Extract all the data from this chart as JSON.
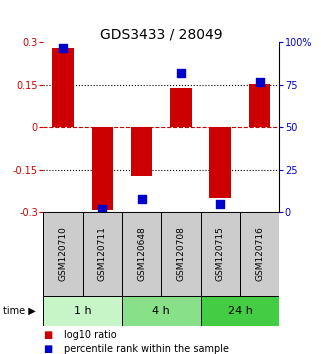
{
  "title": "GDS3433 / 28049",
  "samples": [
    "GSM120710",
    "GSM120711",
    "GSM120648",
    "GSM120708",
    "GSM120715",
    "GSM120716"
  ],
  "log10_ratio": [
    0.28,
    -0.29,
    -0.17,
    0.14,
    -0.25,
    0.155
  ],
  "percentile_rank": [
    97,
    2,
    8,
    82,
    5,
    77
  ],
  "time_groups": [
    {
      "label": "1 h",
      "start": 0,
      "end": 2,
      "color": "#c8f5c8"
    },
    {
      "label": "4 h",
      "start": 2,
      "end": 4,
      "color": "#88e088"
    },
    {
      "label": "24 h",
      "start": 4,
      "end": 6,
      "color": "#44cc44"
    }
  ],
  "ylim_left": [
    -0.3,
    0.3
  ],
  "ylim_right": [
    0,
    100
  ],
  "yticks_left": [
    -0.3,
    -0.15,
    0,
    0.15,
    0.3
  ],
  "ytick_labels_left": [
    "-0.3",
    "-0.15",
    "0",
    "0.15",
    "0.3"
  ],
  "yticks_right": [
    0,
    25,
    50,
    75,
    100
  ],
  "ytick_labels_right": [
    "0",
    "25",
    "50",
    "75",
    "100%"
  ],
  "hlines_dotted": [
    0.15,
    -0.15
  ],
  "hline_dashed": 0,
  "bar_color": "#cc0000",
  "point_color": "#0000cc",
  "bar_width": 0.55,
  "point_size": 28,
  "legend_labels": [
    "log10 ratio",
    "percentile rank within the sample"
  ],
  "legend_colors": [
    "#cc0000",
    "#0000cc"
  ],
  "label_area_color": "#cccccc",
  "time_label_fontsize": 8,
  "sample_label_fontsize": 6.5,
  "title_fontsize": 10
}
